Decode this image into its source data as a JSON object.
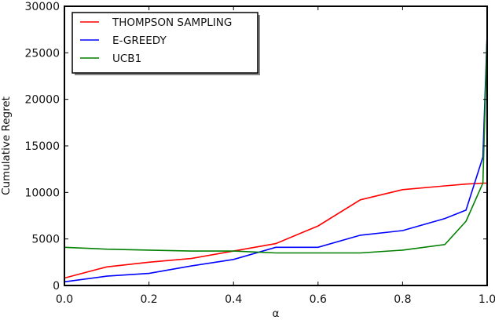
{
  "chart_data": {
    "type": "line",
    "title": "",
    "xlabel": "α",
    "ylabel": "Cumulative Regret",
    "xlim": [
      0.0,
      1.0
    ],
    "ylim": [
      0,
      30000
    ],
    "grid": false,
    "legend_position": "upper left",
    "x": [
      0.0,
      0.1,
      0.2,
      0.3,
      0.4,
      0.5,
      0.6,
      0.7,
      0.8,
      0.9,
      0.95,
      0.99,
      1.0
    ],
    "xticks": [
      "0.0",
      "0.2",
      "0.4",
      "0.6",
      "0.8",
      "1.0"
    ],
    "yticks": [
      "0",
      "5000",
      "10000",
      "15000",
      "20000",
      "25000",
      "30000"
    ],
    "series": [
      {
        "name": "THOMPSON SAMPLING",
        "color": "#ff0000",
        "values": [
          800,
          2000,
          2500,
          2900,
          3700,
          4500,
          6400,
          9200,
          10300,
          10700,
          10900,
          11000,
          11000
        ]
      },
      {
        "name": "E-GREEDY",
        "color": "#0000ff",
        "values": [
          400,
          1000,
          1300,
          2100,
          2800,
          4100,
          4100,
          5400,
          5900,
          7200,
          8100,
          13800,
          27000
        ]
      },
      {
        "name": "UCB1",
        "color": "#008000",
        "values": [
          4100,
          3900,
          3800,
          3700,
          3700,
          3500,
          3500,
          3500,
          3800,
          4400,
          6900,
          11000,
          27000
        ]
      }
    ]
  }
}
